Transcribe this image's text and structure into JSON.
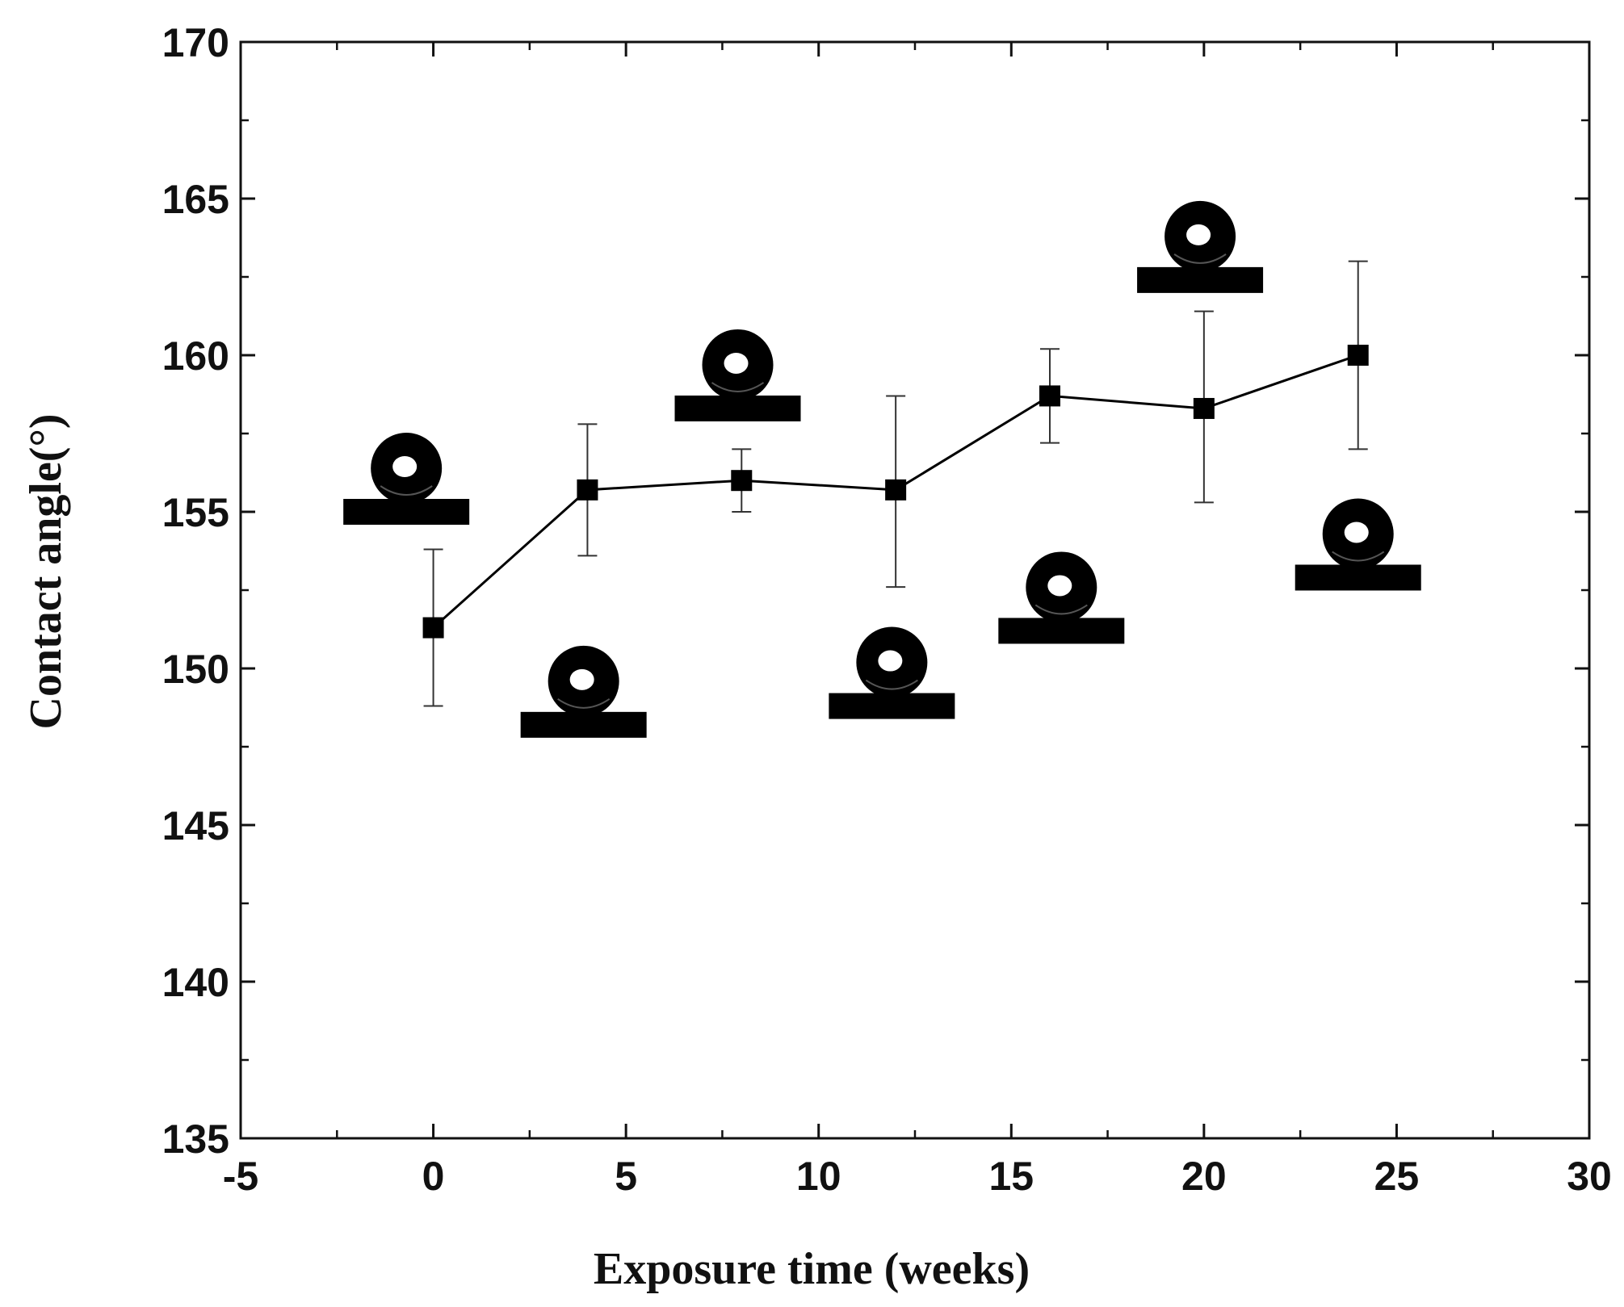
{
  "chart_data": {
    "type": "line",
    "title": "",
    "xlabel": "Exposure time (weeks)",
    "ylabel": "Contact angle(°)",
    "xlim": [
      -5,
      30
    ],
    "ylim": [
      135,
      170
    ],
    "x_ticks": [
      -5,
      0,
      5,
      10,
      15,
      20,
      25,
      30
    ],
    "y_ticks": [
      135,
      140,
      145,
      150,
      155,
      160,
      165,
      170
    ],
    "x_minor_step": 2.5,
    "y_minor_step": 2.5,
    "grid": false,
    "legend": "none",
    "series": [
      {
        "name": "Contact angle",
        "marker": "square",
        "color": "#000000",
        "x": [
          0,
          4,
          8,
          12,
          16,
          20,
          24
        ],
        "y": [
          151.3,
          155.7,
          156.0,
          155.7,
          158.7,
          158.3,
          160.0
        ],
        "err_upper": [
          153.8,
          157.8,
          157.0,
          158.7,
          160.2,
          161.4,
          163.0
        ],
        "err_lower": [
          148.8,
          153.6,
          155.0,
          152.6,
          157.2,
          155.3,
          157.0
        ]
      }
    ],
    "droplet_images": [
      {
        "x": -0.7,
        "y": 155.0,
        "name": "droplet-week-0"
      },
      {
        "x": 3.9,
        "y": 148.2,
        "name": "droplet-week-4"
      },
      {
        "x": 7.9,
        "y": 158.3,
        "name": "droplet-week-8"
      },
      {
        "x": 11.9,
        "y": 148.8,
        "name": "droplet-week-12"
      },
      {
        "x": 16.3,
        "y": 151.2,
        "name": "droplet-week-16"
      },
      {
        "x": 19.9,
        "y": 162.4,
        "name": "droplet-week-20"
      },
      {
        "x": 24.0,
        "y": 152.9,
        "name": "droplet-week-24"
      }
    ]
  }
}
